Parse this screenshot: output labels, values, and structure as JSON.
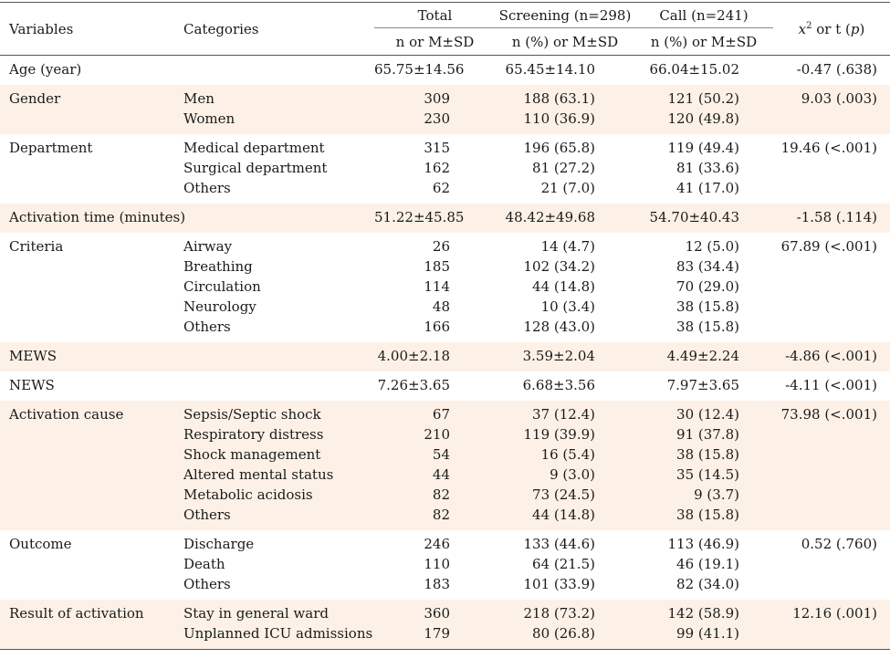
{
  "header": {
    "variables": "Variables",
    "categories": "Categories",
    "total": "Total",
    "screening": "Screening (n=298)",
    "call": "Call (n=241)",
    "stat_prefix": "x",
    "stat_sup": "2",
    "stat_mid": " or t (",
    "stat_p": "p",
    "stat_end": ")",
    "sub_total": "n or M±SD",
    "sub_screening": "n (%) or M±SD",
    "sub_call": "n (%) or M±SD"
  },
  "rows": [
    {
      "variable": "Age (year)",
      "categories": [
        ""
      ],
      "total": [
        "65.75±14.56"
      ],
      "screening": [
        "65.45±14.10"
      ],
      "call": [
        "66.04±15.02"
      ],
      "stat": "-0.47 (.638)"
    },
    {
      "variable": "Gender",
      "categories": [
        "Men",
        "Women"
      ],
      "total": [
        "309",
        "230"
      ],
      "screening": [
        "188 (63.1)",
        "110 (36.9)"
      ],
      "call": [
        "121 (50.2)",
        "120 (49.8)"
      ],
      "stat": "9.03 (.003)"
    },
    {
      "variable": "Department",
      "categories": [
        "Medical department",
        "Surgical department",
        "Others"
      ],
      "total": [
        "315",
        "162",
        "62"
      ],
      "screening": [
        "196 (65.8)",
        "81 (27.2)",
        "21 (7.0)"
      ],
      "call": [
        "119 (49.4)",
        "81 (33.6)",
        "41 (17.0)"
      ],
      "stat": "19.46 (<.001)"
    },
    {
      "variable": "Activation time (minutes)",
      "categories": [
        ""
      ],
      "total": [
        "51.22±45.85"
      ],
      "screening": [
        "48.42±49.68"
      ],
      "call": [
        "54.70±40.43"
      ],
      "stat": "-1.58 (.114)"
    },
    {
      "variable": "Criteria",
      "categories": [
        "Airway",
        "Breathing",
        "Circulation",
        "Neurology",
        "Others"
      ],
      "total": [
        "26",
        "185",
        "114",
        "48",
        "166"
      ],
      "screening": [
        "14 (4.7)",
        "102 (34.2)",
        "44 (14.8)",
        "10 (3.4)",
        "128 (43.0)"
      ],
      "call": [
        "12 (5.0)",
        "83 (34.4)",
        "70 (29.0)",
        "38 (15.8)",
        "38 (15.8)"
      ],
      "stat": "67.89 (<.001)"
    },
    {
      "variable": "MEWS",
      "categories": [
        ""
      ],
      "total": [
        "4.00±2.18"
      ],
      "screening": [
        "3.59±2.04"
      ],
      "call": [
        "4.49±2.24"
      ],
      "stat": "-4.86 (<.001)"
    },
    {
      "variable": "NEWS",
      "categories": [
        ""
      ],
      "total": [
        "7.26±3.65"
      ],
      "screening": [
        "6.68±3.56"
      ],
      "call": [
        "7.97±3.65"
      ],
      "stat": "-4.11 (<.001)"
    },
    {
      "variable": "Activation cause",
      "categories": [
        "Sepsis/Septic shock",
        "Respiratory distress",
        "Shock management",
        "Altered mental status",
        "Metabolic acidosis",
        "Others"
      ],
      "total": [
        "67",
        "210",
        "54",
        "44",
        "82",
        "82"
      ],
      "screening": [
        "37 (12.4)",
        "119 (39.9)",
        "16 (5.4)",
        "9 (3.0)",
        "73 (24.5)",
        "44 (14.8)"
      ],
      "call": [
        "30 (12.4)",
        "91 (37.8)",
        "38 (15.8)",
        "35 (14.5)",
        "9 (3.7)",
        "38 (15.8)"
      ],
      "stat": "73.98 (<.001)"
    },
    {
      "variable": "Outcome",
      "categories": [
        "Discharge",
        "Death",
        "Others"
      ],
      "total": [
        "246",
        "110",
        "183"
      ],
      "screening": [
        "133 (44.6)",
        "64 (21.5)",
        "101 (33.9)"
      ],
      "call": [
        "113 (46.9)",
        "46 (19.1)",
        "82 (34.0)"
      ],
      "stat": "0.52 (.760)"
    },
    {
      "variable": "Result of activation",
      "categories": [
        "Stay in general ward",
        "Unplanned ICU admissions"
      ],
      "total": [
        "360",
        "179"
      ],
      "screening": [
        "218 (73.2)",
        "80 (26.8)"
      ],
      "call": [
        "142 (58.9)",
        "99 (41.1)"
      ],
      "stat": "12.16 (.001)"
    }
  ]
}
